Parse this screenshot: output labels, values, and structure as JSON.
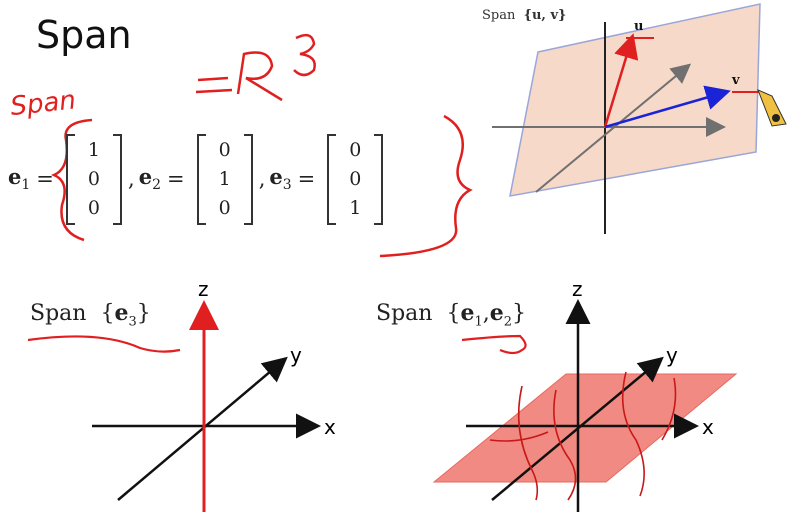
{
  "slide": {
    "title": "Span"
  },
  "annotations": {
    "handwritten_span": "Span",
    "handwritten_r3": "=R³"
  },
  "vectors": [
    {
      "name": "e",
      "sub": "1",
      "entries": [
        "1",
        "0",
        "0"
      ]
    },
    {
      "name": "e",
      "sub": "2",
      "entries": [
        "0",
        "1",
        "0"
      ]
    },
    {
      "name": "e",
      "sub": "3",
      "entries": [
        "0",
        "0",
        "1"
      ]
    }
  ],
  "top_right_figure": {
    "label_prefix": "Span",
    "label_set": "{u, v}",
    "vec_u": "u",
    "vec_v": "v"
  },
  "bottom_left_figure": {
    "label_prefix": "Span",
    "label_open": "{",
    "label_vec": "e",
    "label_sub": "3",
    "label_close": "}",
    "axis_x": "x",
    "axis_y": "y",
    "axis_z": "z"
  },
  "bottom_right_figure": {
    "label_prefix": "Span",
    "label_open": "{",
    "label_vec1": "e",
    "label_sub1": "1",
    "label_sep": ",",
    "label_vec2": "e",
    "label_sub2": "2",
    "label_close": "}",
    "axis_x": "x",
    "axis_y": "y",
    "axis_z": "z"
  },
  "colors": {
    "ink_red": "#e02020",
    "plane_peach": "#f6d9c8",
    "plane_red": "#f08a82",
    "arrow_blue": "#1a23d6",
    "arrow_gray": "#707070"
  }
}
